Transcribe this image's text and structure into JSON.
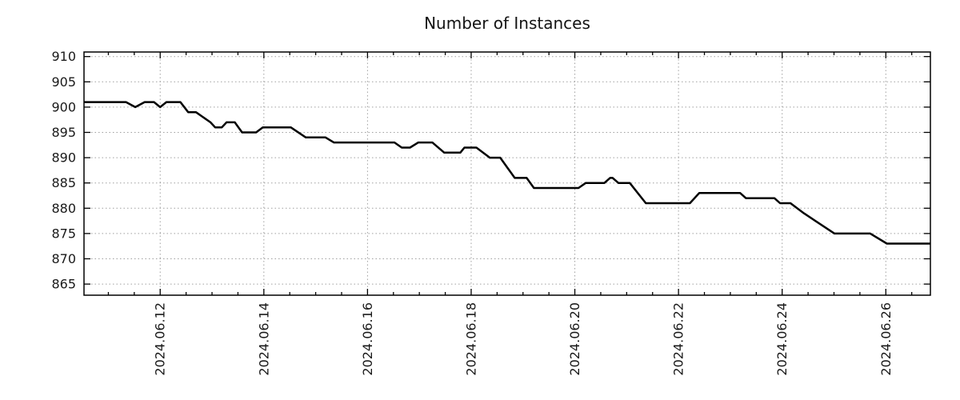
{
  "page": {
    "background": "#ffffff"
  },
  "chart_data": {
    "type": "line",
    "title": "Number of Instances",
    "legend": {
      "show": false
    },
    "grid": {
      "show": true,
      "color": "#a0a0a0",
      "style": "dotted"
    },
    "frame_color": "#000000",
    "text_color": "#1a1a1a",
    "x_axis": {
      "unit": "date (fractional day of June 2024)",
      "range": [
        10.53,
        26.86
      ],
      "minor_tick_step": 0.5,
      "major_ticks": [
        {
          "value": 12,
          "label": "2024.06.12"
        },
        {
          "value": 14,
          "label": "2024.06.14"
        },
        {
          "value": 16,
          "label": "2024.06.16"
        },
        {
          "value": 18,
          "label": "2024.06.18"
        },
        {
          "value": 20,
          "label": "2024.06.20"
        },
        {
          "value": 22,
          "label": "2024.06.22"
        },
        {
          "value": 24,
          "label": "2024.06.24"
        },
        {
          "value": 26,
          "label": "2024.06.26"
        }
      ]
    },
    "y_axis": {
      "range": [
        862.8,
        910.9
      ],
      "ticks": [
        {
          "value": 865,
          "label": "865"
        },
        {
          "value": 870,
          "label": "870"
        },
        {
          "value": 875,
          "label": "875"
        },
        {
          "value": 880,
          "label": "880"
        },
        {
          "value": 885,
          "label": "885"
        },
        {
          "value": 890,
          "label": "890"
        },
        {
          "value": 895,
          "label": "895"
        },
        {
          "value": 900,
          "label": "900"
        },
        {
          "value": 905,
          "label": "905"
        },
        {
          "value": 910,
          "label": "910"
        }
      ]
    },
    "series": [
      {
        "name": "instances",
        "color": "#000000",
        "line_width": 2.5,
        "points": [
          [
            10.53,
            901
          ],
          [
            11.34,
            901
          ],
          [
            11.52,
            900
          ],
          [
            11.7,
            901
          ],
          [
            11.88,
            901
          ],
          [
            12.0,
            900
          ],
          [
            12.12,
            901
          ],
          [
            12.39,
            901
          ],
          [
            12.54,
            899
          ],
          [
            12.69,
            899
          ],
          [
            12.97,
            897
          ],
          [
            13.06,
            896
          ],
          [
            13.19,
            896
          ],
          [
            13.28,
            897
          ],
          [
            13.44,
            897
          ],
          [
            13.58,
            895
          ],
          [
            13.85,
            895
          ],
          [
            13.98,
            896
          ],
          [
            14.52,
            896
          ],
          [
            14.81,
            894
          ],
          [
            15.19,
            894
          ],
          [
            15.35,
            893
          ],
          [
            16.52,
            893
          ],
          [
            16.66,
            892
          ],
          [
            16.82,
            892
          ],
          [
            16.98,
            893
          ],
          [
            17.25,
            893
          ],
          [
            17.48,
            891
          ],
          [
            17.79,
            891
          ],
          [
            17.87,
            892
          ],
          [
            18.1,
            892
          ],
          [
            18.36,
            890
          ],
          [
            18.56,
            890
          ],
          [
            18.84,
            886
          ],
          [
            19.07,
            886
          ],
          [
            19.21,
            884
          ],
          [
            20.07,
            884
          ],
          [
            20.21,
            885
          ],
          [
            20.57,
            885
          ],
          [
            20.68,
            886
          ],
          [
            20.73,
            886
          ],
          [
            20.84,
            885
          ],
          [
            21.06,
            885
          ],
          [
            21.37,
            881
          ],
          [
            22.22,
            881
          ],
          [
            22.4,
            883
          ],
          [
            23.19,
            883
          ],
          [
            23.3,
            882
          ],
          [
            23.85,
            882
          ],
          [
            23.96,
            881
          ],
          [
            24.16,
            881
          ],
          [
            24.42,
            879
          ],
          [
            25.01,
            875
          ],
          [
            25.7,
            875
          ],
          [
            26.02,
            873
          ],
          [
            26.86,
            873
          ]
        ]
      }
    ]
  }
}
